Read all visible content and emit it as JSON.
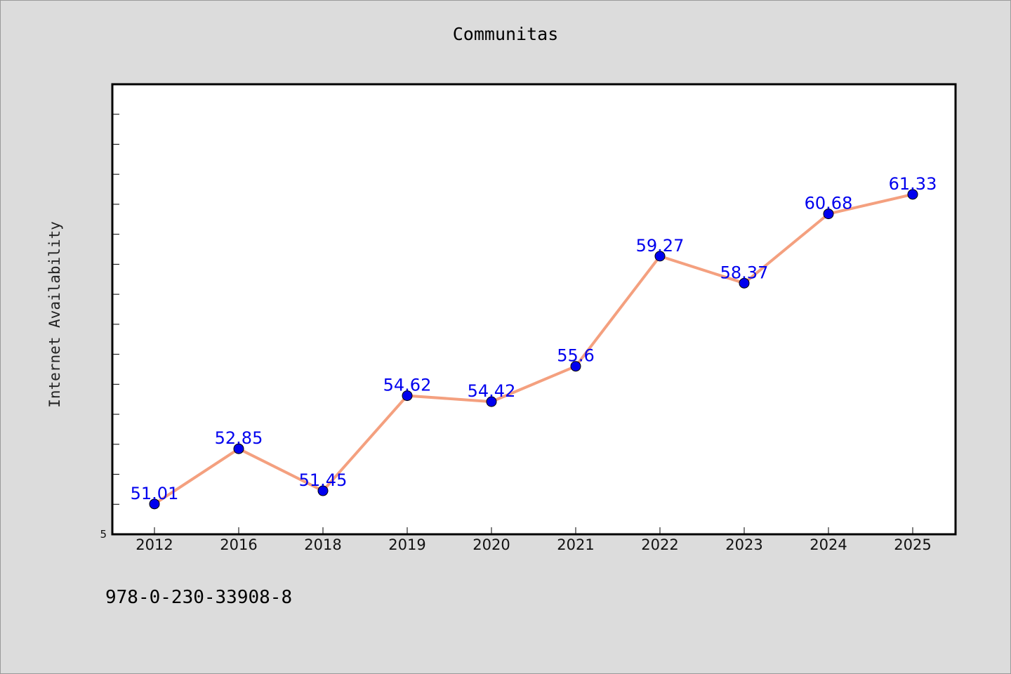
{
  "chart_data": {
    "type": "line",
    "title": "Communitas",
    "xlabel": "",
    "ylabel": "Internet Availability",
    "categories": [
      "2012",
      "2016",
      "2018",
      "2019",
      "2020",
      "2021",
      "2022",
      "2023",
      "2024",
      "2025"
    ],
    "series": [
      {
        "values": [
          51.01,
          52.85,
          51.45,
          54.62,
          54.42,
          55.6,
          59.27,
          58.37,
          60.68,
          61.33
        ],
        "labels": [
          "51.01",
          "52.85",
          "51.45",
          "54.62",
          "54.42",
          "55.6",
          "59.27",
          "58.37",
          "60.68",
          "61.33"
        ],
        "line_color": "#f4a07f",
        "marker_color": "#0000ee",
        "label_color": "#0000ee"
      }
    ],
    "ylim": [
      50,
      65
    ],
    "y_tick_labels": [
      "5"
    ],
    "grid": false,
    "legend": "none"
  },
  "footer": {
    "identifier": "978-0-230-33908-8"
  },
  "colors": {
    "background": "#dcdcdc",
    "plot_background": "#ffffff",
    "axis": "#000000"
  }
}
